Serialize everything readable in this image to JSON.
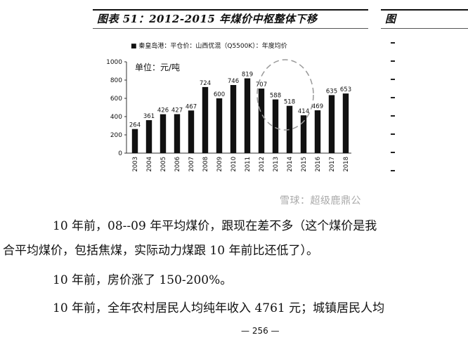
{
  "figure": {
    "title": "图表 51：2012-2015 年煤价中枢整体下移",
    "legend": "■ 秦皇岛港：平仓价：山西优混（Q5500K）：年度均价",
    "unit_label": "单位：元/吨",
    "right_figure_title": "图"
  },
  "chart_data": {
    "type": "bar",
    "title": "图表 51：2012-2015 年煤价中枢整体下移",
    "categories": [
      "2003",
      "2004",
      "2005",
      "2006",
      "2007",
      "2008",
      "2009",
      "2010",
      "2011",
      "2012",
      "2013",
      "2014",
      "2015",
      "2016",
      "2017",
      "2018"
    ],
    "series": [
      {
        "name": "秦皇岛港：平仓价：山西优混（Q5500K）：年度均价",
        "values": [
          264,
          361,
          426,
          427,
          467,
          724,
          600,
          746,
          819,
          707,
          588,
          518,
          414,
          469,
          635,
          653
        ]
      }
    ],
    "yticks": [
      0,
      200,
      400,
      600,
      800,
      1000
    ],
    "ylim": [
      0,
      1000
    ],
    "ylabel": "单位：元/吨",
    "xlabel": "",
    "legend_position": "top",
    "grid": false,
    "annotation": "dashed circle around 2012-2015",
    "bar_color": "#111111"
  },
  "watermark": "雪球：超级鹿鼎公",
  "paragraphs": [
    "10 年前，08--09 年平均煤价，跟现在差不多（这个煤价是我",
    "合平均煤价，包括焦煤，实际动力煤跟 10 年前比还低了）。",
    "10 年前，房价涨了 150-200%。",
    "10 年前，全年农村居民人均纯年收入 4761 元；城镇居民人均"
  ],
  "page_number": "— 256 —"
}
